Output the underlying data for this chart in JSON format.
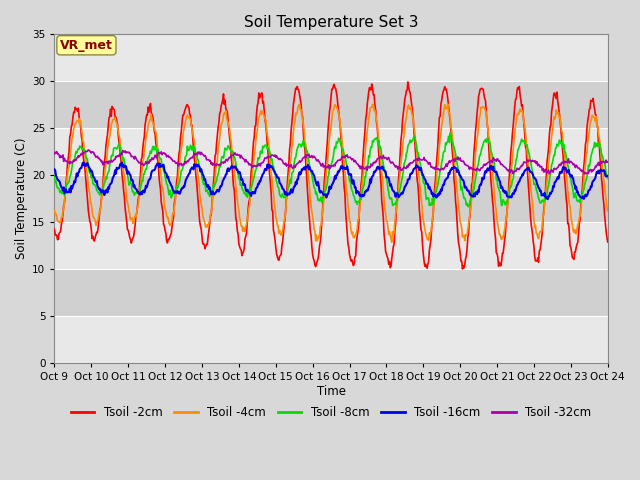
{
  "title": "Soil Temperature Set 3",
  "xlabel": "Time",
  "ylabel": "Soil Temperature (C)",
  "ylim": [
    0,
    35
  ],
  "yticks": [
    0,
    5,
    10,
    15,
    20,
    25,
    30,
    35
  ],
  "annotation_text": "VR_met",
  "annotation_color": "#8B0000",
  "annotation_bg": "#FFFF99",
  "series": [
    {
      "label": "Tsoil -2cm",
      "color": "#FF0000",
      "lw": 1.2
    },
    {
      "label": "Tsoil -4cm",
      "color": "#FF8C00",
      "lw": 1.2
    },
    {
      "label": "Tsoil -8cm",
      "color": "#00DD00",
      "lw": 1.2
    },
    {
      "label": "Tsoil -16cm",
      "color": "#0000EE",
      "lw": 1.5
    },
    {
      "label": "Tsoil -32cm",
      "color": "#AA00AA",
      "lw": 1.2
    }
  ],
  "bg_color": "#D8D8D8",
  "plot_bg_light": "#E8E8E8",
  "plot_bg_dark": "#D0D0D0",
  "grid_color": "#FFFFFF",
  "title_fontsize": 11,
  "tick_label_fontsize": 7.5,
  "axis_label_fontsize": 8.5,
  "legend_fontsize": 8.5,
  "start_day": 9,
  "n_days": 15,
  "seed": 42
}
